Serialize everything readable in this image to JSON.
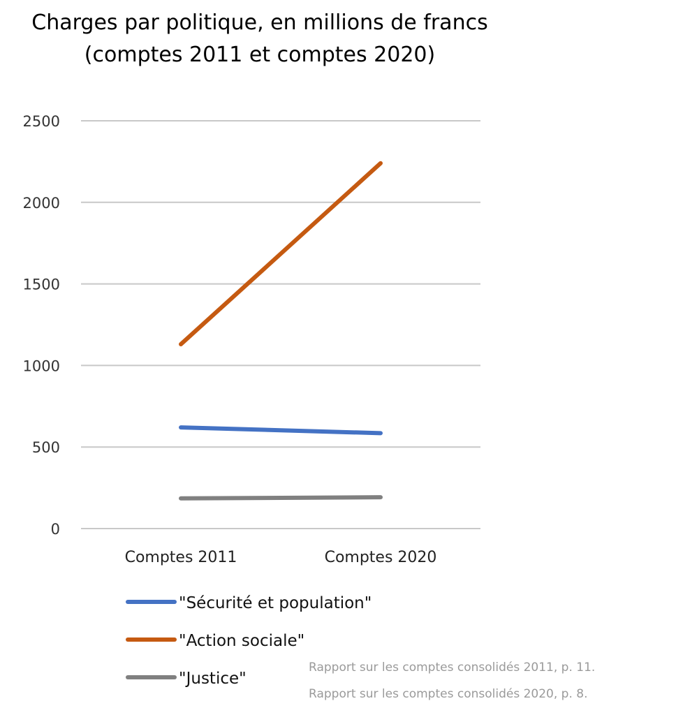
{
  "chart_data": {
    "type": "line",
    "title": "Charges par politique, en millions de francs",
    "subtitle": "(comptes 2011 et comptes 2020)",
    "categories": [
      "Comptes 2011",
      "Comptes 2020"
    ],
    "ylim": [
      0,
      2500
    ],
    "yticks": [
      "0",
      "500",
      "1000",
      "1500",
      "2000",
      "2500"
    ],
    "grid": true,
    "legend_position": "bottom-left",
    "series": [
      {
        "name": "\"Sécurité et population\"",
        "values": [
          620,
          585
        ],
        "color": "#4472C4"
      },
      {
        "name": "\"Action sociale\"",
        "values": [
          1130,
          2240
        ],
        "color": "#C55A11"
      },
      {
        "name": "\"Justice\"",
        "values": [
          185,
          192
        ],
        "color": "#808080"
      }
    ],
    "sources": [
      "Rapport sur les comptes consolidés 2011, p. 11.",
      "Rapport sur les comptes consolidés 2020, p.   8."
    ]
  }
}
